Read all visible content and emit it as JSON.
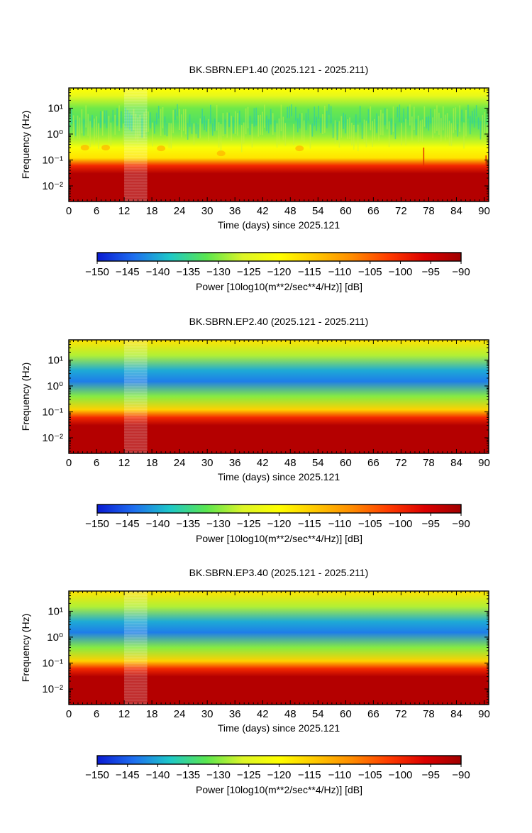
{
  "panels": [
    {
      "title": "BK.SBRN.EP1.40 (2025.121 - 2025.211)",
      "xlabel": "Time (days) since 2025.121",
      "ylabel": "Frequency (Hz)",
      "profile": "noisy"
    },
    {
      "title": "BK.SBRN.EP2.40 (2025.121 - 2025.211)",
      "xlabel": "Time (days) since 2025.121",
      "ylabel": "Frequency (Hz)",
      "profile": "smooth"
    },
    {
      "title": "BK.SBRN.EP3.40 (2025.121 - 2025.211)",
      "xlabel": "Time (days) since 2025.121",
      "ylabel": "Frequency (Hz)",
      "profile": "smooth"
    }
  ],
  "colorbar": {
    "label": "Power [10log10(m**2/sec**4/Hz)] [dB]",
    "ticks": [
      "−150",
      "−145",
      "−140",
      "−135",
      "−130",
      "−125",
      "−120",
      "−115",
      "−110",
      "−105",
      "−100",
      "−95",
      "−90"
    ],
    "colors": [
      "#0a1ad2",
      "#1e6ef0",
      "#1ec8c8",
      "#5ae650",
      "#dcf528",
      "#ffff00",
      "#ffc800",
      "#ff8c00",
      "#ff3c00",
      "#dc0000",
      "#a00000"
    ]
  },
  "chart_data": [
    {
      "type": "heatmap",
      "title": "BK.SBRN.EP1.40 (2025.121 - 2025.211)",
      "xlabel": "Time (days) since 2025.121",
      "ylabel": "Frequency (Hz)",
      "x_ticks": [
        0,
        6,
        12,
        18,
        24,
        30,
        36,
        42,
        48,
        54,
        60,
        66,
        72,
        78,
        84,
        90
      ],
      "xlim": [
        0,
        91
      ],
      "y_scale": "log",
      "y_ticks": [
        0.01,
        0.1,
        1,
        10
      ],
      "y_tick_labels": [
        "10⁻²",
        "10⁻¹",
        "10⁰",
        "10¹"
      ],
      "ylim": [
        0.0025,
        60
      ],
      "z_range": [
        -150,
        -90
      ],
      "gap_days": [
        12,
        17
      ],
      "profile_db": [
        {
          "freq_hz": 0.0025,
          "power_db": -92
        },
        {
          "freq_hz": 0.03,
          "power_db": -92
        },
        {
          "freq_hz": 0.06,
          "power_db": -100
        },
        {
          "freq_hz": 0.12,
          "power_db": -117
        },
        {
          "freq_hz": 0.3,
          "power_db": -121
        },
        {
          "freq_hz": 1.0,
          "power_db": -130
        },
        {
          "freq_hz": 3.0,
          "power_db": -133
        },
        {
          "freq_hz": 10,
          "power_db": -131
        },
        {
          "freq_hz": 30,
          "power_db": -124
        },
        {
          "freq_hz": 60,
          "power_db": -120
        }
      ]
    },
    {
      "type": "heatmap",
      "title": "BK.SBRN.EP2.40 (2025.121 - 2025.211)",
      "xlabel": "Time (days) since 2025.121",
      "ylabel": "Frequency (Hz)",
      "x_ticks": [
        0,
        6,
        12,
        18,
        24,
        30,
        36,
        42,
        48,
        54,
        60,
        66,
        72,
        78,
        84,
        90
      ],
      "xlim": [
        0,
        91
      ],
      "y_scale": "log",
      "y_ticks": [
        0.01,
        0.1,
        1,
        10
      ],
      "y_tick_labels": [
        "10⁻²",
        "10⁻¹",
        "10⁰",
        "10¹"
      ],
      "ylim": [
        0.0025,
        60
      ],
      "z_range": [
        -150,
        -90
      ],
      "gap_days": [
        12,
        17
      ],
      "profile_db": [
        {
          "freq_hz": 0.0025,
          "power_db": -92
        },
        {
          "freq_hz": 0.03,
          "power_db": -92
        },
        {
          "freq_hz": 0.06,
          "power_db": -100
        },
        {
          "freq_hz": 0.12,
          "power_db": -115
        },
        {
          "freq_hz": 0.4,
          "power_db": -130
        },
        {
          "freq_hz": 1.5,
          "power_db": -143
        },
        {
          "freq_hz": 4.0,
          "power_db": -140
        },
        {
          "freq_hz": 15,
          "power_db": -128
        },
        {
          "freq_hz": 60,
          "power_db": -117
        }
      ]
    },
    {
      "type": "heatmap",
      "title": "BK.SBRN.EP3.40 (2025.121 - 2025.211)",
      "xlabel": "Time (days) since 2025.121",
      "ylabel": "Frequency (Hz)",
      "x_ticks": [
        0,
        6,
        12,
        18,
        24,
        30,
        36,
        42,
        48,
        54,
        60,
        66,
        72,
        78,
        84,
        90
      ],
      "xlim": [
        0,
        91
      ],
      "y_scale": "log",
      "y_ticks": [
        0.01,
        0.1,
        1,
        10
      ],
      "y_tick_labels": [
        "10⁻²",
        "10⁻¹",
        "10⁰",
        "10¹"
      ],
      "ylim": [
        0.0025,
        60
      ],
      "z_range": [
        -150,
        -90
      ],
      "gap_days": [
        12,
        17
      ],
      "profile_db": [
        {
          "freq_hz": 0.0025,
          "power_db": -92
        },
        {
          "freq_hz": 0.03,
          "power_db": -92
        },
        {
          "freq_hz": 0.06,
          "power_db": -100
        },
        {
          "freq_hz": 0.12,
          "power_db": -115
        },
        {
          "freq_hz": 0.4,
          "power_db": -130
        },
        {
          "freq_hz": 1.5,
          "power_db": -143
        },
        {
          "freq_hz": 4.0,
          "power_db": -140
        },
        {
          "freq_hz": 15,
          "power_db": -128
        },
        {
          "freq_hz": 60,
          "power_db": -117
        }
      ]
    }
  ]
}
